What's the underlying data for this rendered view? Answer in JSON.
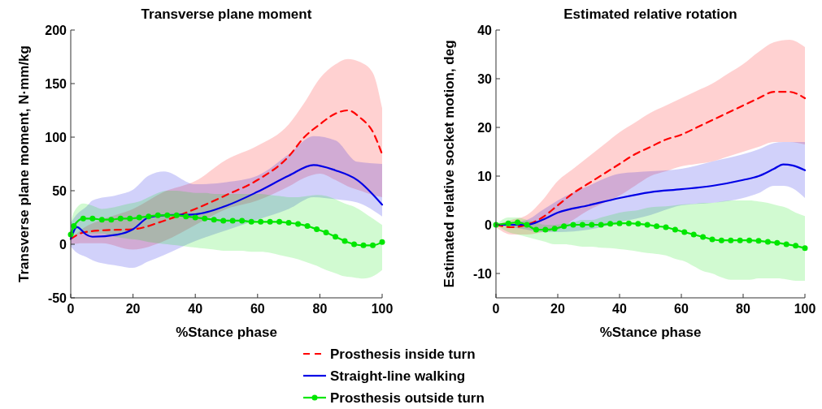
{
  "chart_data": [
    {
      "type": "line",
      "title": "Transverse plane moment",
      "xlabel": "%Stance phase",
      "ylabel": "Transverse plane moment, N·mm/kg",
      "xlim": [
        0,
        100
      ],
      "xticks": [
        0,
        20,
        40,
        60,
        80,
        100
      ],
      "ylim": [
        -50,
        200
      ],
      "yticks": [
        -50,
        0,
        50,
        100,
        150,
        200
      ],
      "grid": false,
      "legend": "bottom",
      "series": [
        {
          "name": "Prosthesis inside turn",
          "color": "#ff0000",
          "line_style": "dashed",
          "marker": "none",
          "x": [
            0,
            4,
            10,
            20,
            30,
            40,
            50,
            60,
            70,
            75,
            80,
            85,
            89,
            93,
            97,
            100
          ],
          "values": [
            5,
            11,
            13,
            14,
            22,
            33,
            46,
            60,
            82,
            100,
            112,
            122,
            125,
            118,
            105,
            84
          ],
          "lower": [
            0,
            1,
            1,
            -5,
            3,
            18,
            33,
            41,
            54,
            62,
            66,
            60,
            54,
            50,
            46,
            44
          ],
          "upper": [
            5,
            15,
            23,
            33,
            49,
            59,
            79,
            92,
            112,
            132,
            155,
            168,
            173,
            170,
            160,
            127
          ]
        },
        {
          "name": "Straight-line walking",
          "color": "#0000e6",
          "line_style": "solid",
          "marker": "none",
          "x": [
            0,
            2,
            5,
            7,
            15,
            20,
            25,
            30,
            40,
            50,
            60,
            70,
            78,
            85,
            92,
            100
          ],
          "values": [
            5,
            16,
            9,
            7,
            9,
            14,
            25,
            27,
            28,
            36,
            49,
            64,
            74,
            69,
            60,
            37
          ],
          "lower": [
            -2,
            -8,
            -12,
            -15,
            -20,
            -22,
            -16,
            -10,
            3,
            13,
            23,
            33,
            44,
            42,
            39,
            26
          ],
          "upper": [
            20,
            28,
            35,
            41,
            46,
            51,
            64,
            68,
            56,
            58,
            64,
            84,
            101,
            97,
            77,
            75
          ]
        },
        {
          "name": "Prosthesis outside turn",
          "color": "#00e600",
          "line_style": "solid",
          "marker": "circle",
          "x": [
            0,
            1,
            4,
            7,
            10,
            13,
            16,
            19,
            22,
            25,
            28,
            31,
            34,
            37,
            40,
            43,
            46,
            49,
            52,
            55,
            58,
            61,
            64,
            67,
            70,
            73,
            76,
            79,
            82,
            85,
            88,
            91,
            94,
            97,
            100
          ],
          "values": [
            9,
            17,
            24,
            24,
            23,
            23,
            24,
            24,
            25,
            26,
            27,
            27,
            27,
            26,
            25,
            24,
            23,
            22,
            22,
            22,
            21,
            21,
            21,
            21,
            20,
            19,
            17,
            14,
            11,
            7,
            3,
            0,
            -1,
            -1,
            2
          ],
          "lower": [
            5,
            8,
            10,
            10,
            10,
            8,
            6,
            5,
            4,
            2,
            1,
            0,
            -1,
            -2,
            -3,
            -4,
            -5,
            -6,
            -6,
            -6,
            -7,
            -7,
            -8,
            -10,
            -12,
            -14,
            -17,
            -20,
            -24,
            -27,
            -30,
            -31,
            -32,
            -30,
            -24
          ],
          "upper": [
            20,
            30,
            38,
            36,
            33,
            34,
            36,
            38,
            40,
            44,
            48,
            50,
            50,
            49,
            48,
            48,
            47,
            47,
            47,
            47,
            47,
            47,
            46,
            45,
            44,
            44,
            45,
            46,
            45,
            42,
            38,
            35,
            30,
            24,
            18
          ]
        }
      ]
    },
    {
      "type": "line",
      "title": "Estimated relative rotation",
      "xlabel": "%Stance phase",
      "ylabel": "Estimated relative socket motion, deg",
      "xlim": [
        0,
        100
      ],
      "xticks": [
        0,
        20,
        40,
        60,
        80,
        100
      ],
      "ylim": [
        -15,
        40
      ],
      "yticks": [
        -10,
        0,
        10,
        20,
        30,
        40
      ],
      "grid": false,
      "series": [
        {
          "color": "#ff0000",
          "line_style": "dashed",
          "marker": "none",
          "x": [
            0,
            5,
            10,
            15,
            20,
            25,
            30,
            35,
            40,
            45,
            50,
            55,
            60,
            65,
            70,
            75,
            80,
            85,
            90,
            95,
            100
          ],
          "values": [
            0,
            -0.5,
            0,
            1.5,
            4,
            6.5,
            8.5,
            10.5,
            12.5,
            14.5,
            16,
            17.5,
            18.5,
            20,
            21.5,
            23,
            24.5,
            26,
            27.3,
            27.3,
            26
          ],
          "lower": [
            -0.5,
            -2,
            -2,
            -1.5,
            -1,
            1,
            3,
            4.5,
            6,
            8,
            10,
            11,
            12,
            12.5,
            13,
            14,
            15,
            16,
            17,
            17,
            16.5
          ],
          "upper": [
            0,
            1,
            2,
            5,
            9,
            11.5,
            14,
            16.5,
            19,
            21,
            23,
            24.5,
            26,
            27.5,
            29,
            31,
            33,
            35.5,
            37.5,
            38,
            36.5
          ]
        },
        {
          "color": "#0000e6",
          "line_style": "solid",
          "marker": "none",
          "x": [
            0,
            10,
            15,
            20,
            30,
            40,
            50,
            60,
            70,
            80,
            85,
            90,
            93,
            96,
            100
          ],
          "values": [
            0,
            0,
            1,
            2.5,
            4,
            5.5,
            6.7,
            7.3,
            8,
            9.2,
            10,
            11.5,
            12.4,
            12.2,
            11.2
          ],
          "lower": [
            0,
            -1,
            -1.5,
            -1.5,
            -1,
            0.5,
            2,
            4,
            4.5,
            5.5,
            6.5,
            8,
            8,
            7.5,
            5.5
          ],
          "upper": [
            0,
            1,
            3,
            5,
            8,
            10.5,
            11,
            11.5,
            13,
            14.5,
            15.5,
            16.8,
            17,
            17,
            17
          ]
        },
        {
          "color": "#00e600",
          "line_style": "solid",
          "marker": "circle",
          "x": [
            0,
            4,
            7,
            10,
            13,
            16,
            19,
            22,
            25,
            28,
            31,
            34,
            37,
            40,
            43,
            46,
            49,
            52,
            55,
            58,
            61,
            64,
            67,
            70,
            73,
            76,
            79,
            82,
            85,
            88,
            91,
            94,
            97,
            100
          ],
          "values": [
            0,
            0.3,
            0.5,
            0,
            -1,
            -1,
            -0.8,
            -0.3,
            0,
            0,
            0,
            0,
            0.2,
            0.3,
            0.3,
            0.2,
            0,
            -0.3,
            -0.5,
            -1,
            -1.5,
            -2,
            -2.5,
            -3,
            -3.2,
            -3.2,
            -3.2,
            -3.2,
            -3.3,
            -3.5,
            -3.7,
            -4,
            -4.3,
            -4.8
          ],
          "lower": [
            0,
            -1.5,
            -2,
            -2.5,
            -3,
            -3.5,
            -4,
            -4,
            -4.2,
            -4.5,
            -4.5,
            -4.7,
            -4.8,
            -5,
            -5.2,
            -5.5,
            -5.8,
            -6,
            -6.3,
            -7,
            -7.5,
            -8.5,
            -9.5,
            -10,
            -10.8,
            -11.3,
            -11.3,
            -11.3,
            -11,
            -11,
            -11,
            -11.2,
            -11.5,
            -11.5
          ],
          "upper": [
            0,
            1.5,
            1.5,
            1,
            0.5,
            0,
            0,
            0.2,
            0.5,
            1,
            1,
            1.5,
            2,
            2.5,
            2.8,
            3,
            3.5,
            3.7,
            3.8,
            4,
            4.2,
            4.3,
            4.5,
            4.5,
            4.8,
            5,
            5,
            5,
            4.8,
            4.5,
            4,
            3.5,
            2.5,
            1.8
          ]
        }
      ]
    }
  ]
}
